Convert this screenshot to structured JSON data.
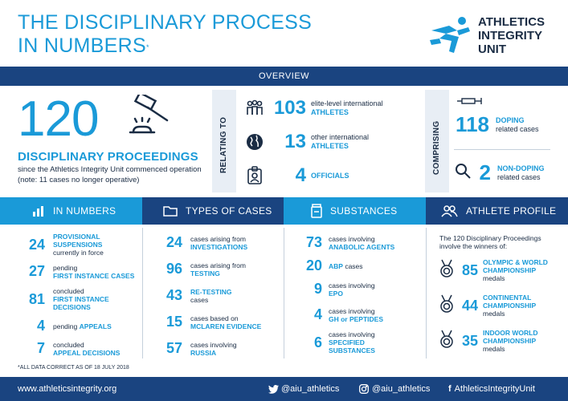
{
  "header": {
    "title_line1": "THE DISCIPLINARY PROCESS",
    "title_line2": "IN NUMBERS",
    "title_mark": "*",
    "logo_line1": "ATHLETICS",
    "logo_line2": "INTEGRITY",
    "logo_line3": "UNIT"
  },
  "overview": {
    "bar_label": "OVERVIEW",
    "total": "120",
    "total_label": "DISCIPLINARY PROCEEDINGS",
    "total_desc": "since the Athletics Integrity Unit commenced operation (note: 11 cases no longer operative)",
    "relating_label": "RELATING TO",
    "relating": [
      {
        "icon": "athletes-group-icon",
        "number": "103",
        "text": "elite-level international",
        "highlight": "ATHLETES"
      },
      {
        "icon": "globe-icon",
        "number": "13",
        "text": "other international",
        "highlight": "ATHLETES"
      },
      {
        "icon": "id-badge-icon",
        "number": "4",
        "text": "",
        "highlight": "OFFICIALS"
      }
    ],
    "comprising_label": "COMPRISING",
    "comprising": [
      {
        "icon": "syringe-icon",
        "number": "118",
        "highlight": "DOPING",
        "text": "related cases"
      },
      {
        "icon": "magnifier-icon",
        "number": "2",
        "highlight": "NON-DOPING",
        "text": "related cases"
      }
    ]
  },
  "sections": {
    "in_numbers": {
      "header": "IN NUMBERS",
      "items": [
        {
          "number": "24",
          "pre": "",
          "highlight": "PROVISIONAL SUSPENSIONS",
          "post": "currently in force"
        },
        {
          "number": "27",
          "pre": "pending",
          "highlight": "FIRST INSTANCE CASES",
          "post": ""
        },
        {
          "number": "81",
          "pre": "concluded",
          "highlight": "FIRST INSTANCE DECISIONS",
          "post": ""
        },
        {
          "number": "4",
          "pre": "pending",
          "highlight": "APPEALS",
          "post": ""
        },
        {
          "number": "7",
          "pre": "concluded",
          "highlight": "APPEAL DECISIONS",
          "post": ""
        }
      ]
    },
    "types_of_cases": {
      "header": "TYPES OF CASES",
      "items": [
        {
          "number": "24",
          "pre": "cases arising from",
          "highlight": "INVESTIGATIONS",
          "post": ""
        },
        {
          "number": "96",
          "pre": "cases arising from",
          "highlight": "TESTING",
          "post": ""
        },
        {
          "number": "43",
          "pre": "",
          "highlight": "RE-TESTING",
          "post": "cases"
        },
        {
          "number": "15",
          "pre": "cases based on",
          "highlight": "MCLAREN EVIDENCE",
          "post": ""
        },
        {
          "number": "57",
          "pre": "cases involving",
          "highlight": "RUSSIA",
          "post": ""
        }
      ]
    },
    "substances": {
      "header": "SUBSTANCES",
      "items": [
        {
          "number": "73",
          "pre": "cases involving",
          "highlight": "ANABOLIC AGENTS",
          "post": ""
        },
        {
          "number": "20",
          "pre": "",
          "highlight": "ABP",
          "post": "cases"
        },
        {
          "number": "9",
          "pre": "cases involving",
          "highlight": "EPO",
          "post": ""
        },
        {
          "number": "4",
          "pre": "cases involving",
          "highlight": "GH or PEPTIDES",
          "post": ""
        },
        {
          "number": "6",
          "pre": "cases involving",
          "highlight": "SPECIFIED SUBSTANCES",
          "post": ""
        }
      ]
    },
    "athlete_profile": {
      "header": "ATHLETE PROFILE",
      "intro": "The 120 Disciplinary Proceedings involve the winners of:",
      "items": [
        {
          "number": "85",
          "highlight": "OLYMPIC & WORLD CHAMPIONSHIP",
          "post": "medals"
        },
        {
          "number": "44",
          "highlight": "CONTINENTAL CHAMPIONSHIP",
          "post": "medals"
        },
        {
          "number": "35",
          "highlight": "INDOOR WORLD CHAMPIONSHIP",
          "post": "medals"
        }
      ]
    }
  },
  "footnote": "*ALL DATA CORRECT AS OF 18 JULY 2018",
  "footer": {
    "website": "www.athleticsintegrity.org",
    "twitter": "@aiu_athletics",
    "instagram": "@aiu_athletics",
    "facebook": "AthleticsIntegrityUnit"
  },
  "colors": {
    "accent": "#1a9ad8",
    "navy": "#1a2c44",
    "bar": "#1a4480",
    "panel": "#e8eef5"
  }
}
